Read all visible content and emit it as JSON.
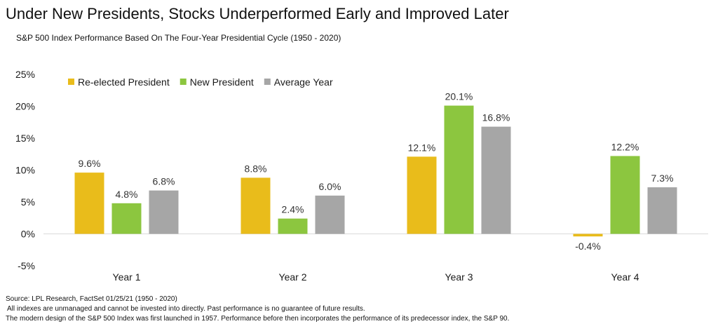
{
  "title": "Under New Presidents, Stocks Underperformed Early and Improved Later",
  "subtitle": "S&P 500 Index Performance Based On The Four-Year Presidential Cycle (1950 - 2020)",
  "notes": [
    "Source:  LPL Research,  FactSet 01/25/21  (1950  - 2020)",
    "All indexes are unmanaged and cannot be invested into directly. Past performance is no guarantee of future results.",
    "The modern design of the S&P 500  Index was first launched in 1957.  Performance before then incorporates the performance of its predecessor index, the S&P 90."
  ],
  "chart_data": {
    "type": "bar",
    "categories": [
      "Year 1",
      "Year 2",
      "Year 3",
      "Year 4"
    ],
    "series": [
      {
        "name": "Re-elected President",
        "values": [
          9.6,
          8.8,
          12.1,
          -0.4
        ],
        "labels": [
          "9.6%",
          "8.8%",
          "12.1%",
          "-0.4%"
        ],
        "color": "#E9BC1B"
      },
      {
        "name": "New President",
        "values": [
          4.8,
          2.4,
          20.1,
          12.2
        ],
        "labels": [
          "4.8%",
          "2.4%",
          "20.1%",
          "12.2%"
        ],
        "color": "#8CC63F"
      },
      {
        "name": "Average Year",
        "values": [
          6.8,
          6.0,
          16.8,
          7.3
        ],
        "labels": [
          "6.8%",
          "6.0%",
          "16.8%",
          "7.3%"
        ],
        "color": "#A6A6A6"
      }
    ],
    "ylim": [
      -5,
      25
    ],
    "yticks": [
      -5,
      0,
      5,
      10,
      15,
      20,
      25
    ],
    "ytick_labels": [
      "-5%",
      "0%",
      "5%",
      "10%",
      "15%",
      "20%",
      "25%"
    ],
    "xlabel": "",
    "ylabel": "",
    "legend_position": "top-left",
    "grid": false
  }
}
